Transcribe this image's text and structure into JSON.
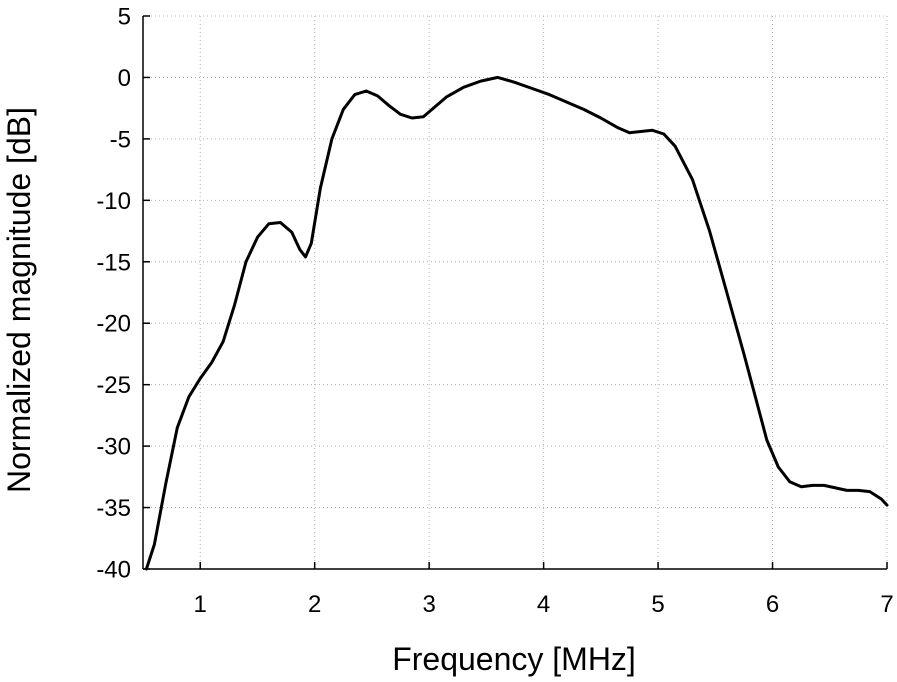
{
  "chart_data": {
    "type": "line",
    "title": "",
    "xlabel": "Frequency [MHz]",
    "ylabel": "Normalized magnitude [dB]",
    "xlim": [
      0.5,
      7
    ],
    "ylim": [
      -40,
      5
    ],
    "xticks": [
      "1",
      "2",
      "3",
      "4",
      "5",
      "6",
      "7"
    ],
    "yticks": [
      "5",
      "0",
      "-5",
      "-10",
      "-15",
      "-20",
      "-25",
      "-30",
      "-35",
      "-40"
    ],
    "grid": true,
    "series": [
      {
        "color": "#000000",
        "x": [
          0.53,
          0.6,
          0.7,
          0.8,
          0.9,
          1.0,
          1.1,
          1.2,
          1.3,
          1.4,
          1.5,
          1.6,
          1.7,
          1.8,
          1.87,
          1.92,
          1.97,
          2.05,
          2.15,
          2.25,
          2.35,
          2.45,
          2.55,
          2.65,
          2.75,
          2.85,
          2.95,
          3.05,
          3.15,
          3.3,
          3.45,
          3.6,
          3.75,
          3.9,
          4.05,
          4.2,
          4.35,
          4.5,
          4.65,
          4.75,
          4.85,
          4.95,
          5.05,
          5.15,
          5.3,
          5.45,
          5.6,
          5.75,
          5.85,
          5.95,
          6.05,
          6.15,
          6.25,
          6.35,
          6.45,
          6.55,
          6.65,
          6.75,
          6.85,
          6.95,
          7.0
        ],
        "y": [
          -40,
          -38,
          -33,
          -28.5,
          -26,
          -24.5,
          -23.2,
          -21.5,
          -18.5,
          -15,
          -13,
          -11.9,
          -11.8,
          -12.6,
          -14,
          -14.6,
          -13.5,
          -9,
          -5,
          -2.6,
          -1.4,
          -1.1,
          -1.5,
          -2.3,
          -3,
          -3.3,
          -3.2,
          -2.4,
          -1.6,
          -0.8,
          -0.3,
          0,
          -0.4,
          -0.9,
          -1.4,
          -2,
          -2.6,
          -3.3,
          -4.1,
          -4.5,
          -4.4,
          -4.3,
          -4.6,
          -5.6,
          -8.3,
          -12.5,
          -17.5,
          -22.5,
          -26,
          -29.5,
          -31.7,
          -32.9,
          -33.3,
          -33.2,
          -33.2,
          -33.4,
          -33.6,
          -33.6,
          -33.7,
          -34.3,
          -34.8
        ]
      }
    ]
  }
}
